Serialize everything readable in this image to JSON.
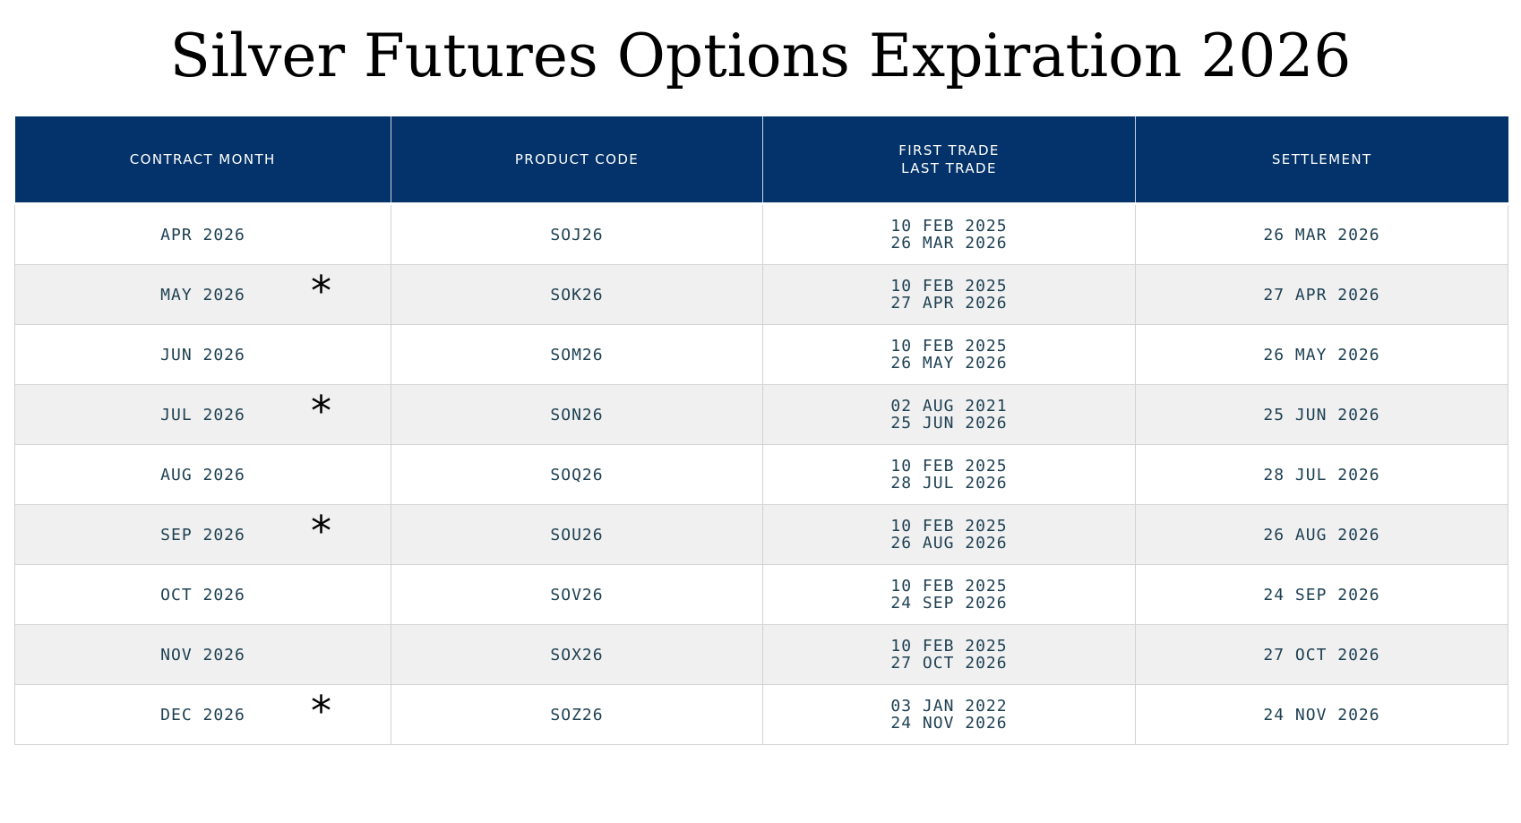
{
  "title": "Silver Futures Options Expiration 2026",
  "header": {
    "contract_month": "CONTRACT MONTH",
    "product_code": "PRODUCT CODE",
    "first_trade": "FIRST TRADE",
    "last_trade": "LAST TRADE",
    "settlement": "SETTLEMENT"
  },
  "marker": "*",
  "rows": [
    {
      "month": "APR 2026",
      "marked": false,
      "code": "SOJ26",
      "first_trade": "10 FEB 2025",
      "last_trade": "26 MAR 2026",
      "settlement": "26 MAR 2026"
    },
    {
      "month": "MAY 2026",
      "marked": true,
      "code": "SOK26",
      "first_trade": "10 FEB 2025",
      "last_trade": "27 APR 2026",
      "settlement": "27 APR 2026"
    },
    {
      "month": "JUN 2026",
      "marked": false,
      "code": "SOM26",
      "first_trade": "10 FEB 2025",
      "last_trade": "26 MAY 2026",
      "settlement": "26 MAY 2026"
    },
    {
      "month": "JUL 2026",
      "marked": true,
      "code": "SON26",
      "first_trade": "02 AUG 2021",
      "last_trade": "25 JUN 2026",
      "settlement": "25 JUN 2026"
    },
    {
      "month": "AUG 2026",
      "marked": false,
      "code": "SOQ26",
      "first_trade": "10 FEB 2025",
      "last_trade": "28 JUL 2026",
      "settlement": "28 JUL 2026"
    },
    {
      "month": "SEP 2026",
      "marked": true,
      "code": "SOU26",
      "first_trade": "10 FEB 2025",
      "last_trade": "26 AUG 2026",
      "settlement": "26 AUG 2026"
    },
    {
      "month": "OCT 2026",
      "marked": false,
      "code": "SOV26",
      "first_trade": "10 FEB 2025",
      "last_trade": "24 SEP 2026",
      "settlement": "24 SEP 2026"
    },
    {
      "month": "NOV 2026",
      "marked": false,
      "code": "SOX26",
      "first_trade": "10 FEB 2025",
      "last_trade": "27 OCT 2026",
      "settlement": "27 OCT 2026"
    },
    {
      "month": "DEC 2026",
      "marked": true,
      "code": "SOZ26",
      "first_trade": "03 JAN 2022",
      "last_trade": "24 NOV 2026",
      "settlement": "24 NOV 2026"
    }
  ]
}
